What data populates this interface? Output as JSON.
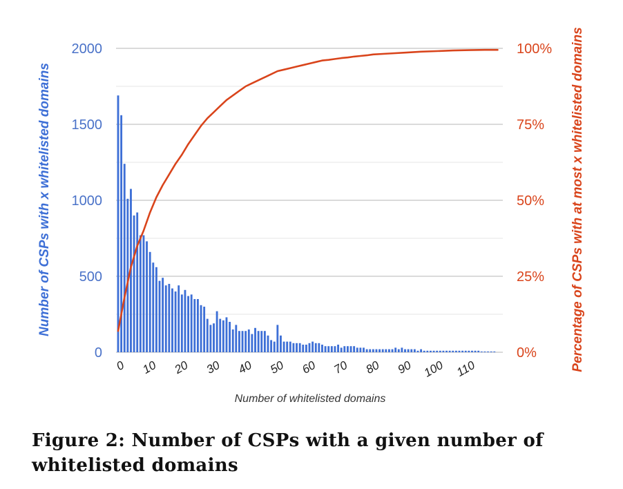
{
  "caption": "Figure 2: Number of CSPs with a given number of whitelisted domains",
  "chart_data": {
    "type": "bar",
    "title": "",
    "xlabel": "Number of whitelisted domains",
    "ylabel": "Number of CSPs with x whitelisted domains",
    "y2label": "Percentage of CSPs with at most x whitelisted domains",
    "xlim": [
      0,
      120
    ],
    "ylim": [
      0,
      2000
    ],
    "y2lim": [
      0,
      100
    ],
    "x_ticks": [
      "0",
      "10",
      "20",
      "30",
      "40",
      "50",
      "60",
      "70",
      "80",
      "90",
      "100",
      "110"
    ],
    "y_ticks": [
      "0",
      "500",
      "1000",
      "1500",
      "2000"
    ],
    "y2_ticks": [
      "0%",
      "25%",
      "50%",
      "75%",
      "100%"
    ],
    "grid": true,
    "colors": {
      "bars": "#3d6fd6",
      "line": "#d9441b"
    },
    "series": [
      {
        "type": "bar",
        "axis": "left",
        "x": [
          0,
          1,
          2,
          3,
          4,
          5,
          6,
          7,
          8,
          9,
          10,
          11,
          12,
          13,
          14,
          15,
          16,
          17,
          18,
          19,
          20,
          21,
          22,
          23,
          24,
          25,
          26,
          27,
          28,
          29,
          30,
          31,
          32,
          33,
          34,
          35,
          36,
          37,
          38,
          39,
          40,
          41,
          42,
          43,
          44,
          45,
          46,
          47,
          48,
          49,
          50,
          51,
          52,
          53,
          54,
          55,
          56,
          57,
          58,
          59,
          60,
          61,
          62,
          63,
          64,
          65,
          66,
          67,
          68,
          69,
          70,
          71,
          72,
          73,
          74,
          75,
          76,
          77,
          78,
          79,
          80,
          81,
          82,
          83,
          84,
          85,
          86,
          87,
          88,
          89,
          90,
          91,
          92,
          93,
          94,
          95,
          96,
          97,
          98,
          99,
          100,
          101,
          102,
          103,
          104,
          105,
          106,
          107,
          108,
          109,
          110,
          111,
          112,
          113,
          114,
          115,
          116,
          117,
          118
        ],
        "values": [
          1690,
          1560,
          1240,
          1010,
          1075,
          900,
          920,
          770,
          770,
          730,
          660,
          590,
          560,
          470,
          490,
          440,
          450,
          420,
          400,
          440,
          380,
          410,
          370,
          380,
          350,
          350,
          310,
          300,
          220,
          180,
          190,
          270,
          220,
          210,
          230,
          200,
          150,
          180,
          140,
          140,
          140,
          150,
          120,
          160,
          140,
          140,
          140,
          110,
          80,
          70,
          180,
          110,
          70,
          70,
          70,
          60,
          60,
          60,
          50,
          50,
          60,
          70,
          60,
          60,
          50,
          40,
          40,
          40,
          40,
          50,
          30,
          40,
          40,
          40,
          40,
          30,
          30,
          30,
          20,
          20,
          20,
          20,
          20,
          20,
          20,
          20,
          20,
          30,
          20,
          30,
          20,
          20,
          20,
          20,
          10,
          20,
          10,
          10,
          10,
          10,
          10,
          10,
          10,
          10,
          10,
          10,
          10,
          10,
          10,
          10,
          10,
          10,
          10,
          10,
          5,
          5,
          5,
          5,
          5
        ]
      },
      {
        "type": "line",
        "axis": "right",
        "x": [
          0,
          2,
          4,
          6,
          8,
          10,
          12,
          14,
          16,
          18,
          20,
          22,
          24,
          26,
          28,
          30,
          32,
          34,
          36,
          38,
          40,
          42,
          44,
          46,
          48,
          50,
          52,
          54,
          56,
          58,
          60,
          62,
          64,
          66,
          68,
          70,
          72,
          74,
          76,
          78,
          80,
          85,
          90,
          95,
          100,
          105,
          110,
          115,
          119
        ],
        "values": [
          7,
          18,
          28,
          35,
          40,
          46,
          51,
          55,
          58.5,
          62,
          65,
          68.5,
          71.5,
          74.5,
          77,
          79,
          81,
          83,
          84.5,
          86,
          87.5,
          88.5,
          89.5,
          90.5,
          91.5,
          92.5,
          93,
          93.5,
          94,
          94.5,
          95,
          95.5,
          96,
          96.2,
          96.5,
          96.8,
          97,
          97.3,
          97.5,
          97.7,
          98,
          98.3,
          98.6,
          98.9,
          99.1,
          99.3,
          99.4,
          99.5,
          99.5
        ]
      }
    ]
  }
}
